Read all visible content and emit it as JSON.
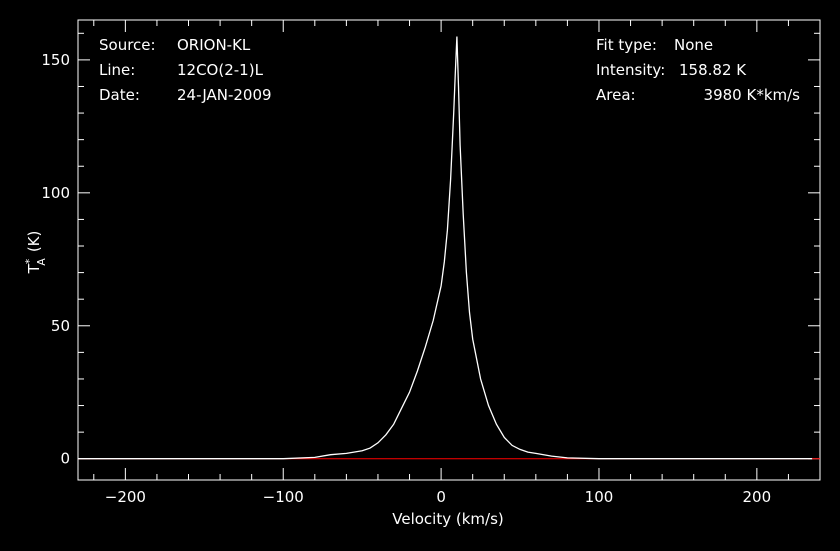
{
  "info": {
    "source_label": "Source:",
    "source_value": "ORION-KL",
    "line_label": "Line:",
    "line_value": "12CO(2-1)L",
    "date_label": "Date:",
    "date_value": "24-JAN-2009",
    "fit_type_label": "Fit type:",
    "fit_type_value": "None",
    "intensity_label": "Intensity:",
    "intensity_value": "158.82 K",
    "area_label": "Area:",
    "area_value": "3980 K*km/s"
  },
  "colors": {
    "background": "#000000",
    "axis": "#ffffff",
    "spectrum": "#ffffff",
    "baseline": "#ff0000"
  },
  "chart_data": {
    "type": "line",
    "title": "",
    "xlabel": "Velocity (km/s)",
    "ylabel_main": "T",
    "ylabel_superscript": "*",
    "ylabel_subscript": "A",
    "ylabel_unit": "(K)",
    "xlim": [
      -230,
      240
    ],
    "ylim": [
      -8,
      165
    ],
    "xticks": [
      -200,
      -100,
      0,
      100,
      200
    ],
    "yticks": [
      0,
      50,
      100,
      150
    ],
    "xtick_labels": [
      "−200",
      "−100",
      "0",
      "100",
      "200"
    ],
    "ytick_labels": [
      "0",
      "50",
      "100",
      "150"
    ],
    "grid": false,
    "series": [
      {
        "x": [
          -230,
          -200,
          -150,
          -100,
          -80,
          -70,
          -60,
          -50,
          -45,
          -40,
          -35,
          -30,
          -25,
          -20,
          -15,
          -10,
          -5,
          0,
          2,
          4,
          6,
          8,
          9,
          10,
          11,
          12,
          14,
          16,
          18,
          20,
          25,
          30,
          35,
          40,
          45,
          50,
          55,
          60,
          70,
          80,
          100,
          150,
          200,
          235
        ],
        "y": [
          0,
          0,
          0,
          0,
          0.5,
          1.5,
          2,
          3,
          4,
          6,
          9,
          13,
          19,
          25,
          33,
          42,
          52,
          65,
          74,
          86,
          105,
          130,
          145,
          158.8,
          140,
          118,
          92,
          70,
          55,
          45,
          30,
          20,
          13,
          8,
          5,
          3.5,
          2.5,
          2,
          1,
          0.3,
          0,
          0,
          0,
          0
        ]
      }
    ],
    "baseline_value": 0
  }
}
